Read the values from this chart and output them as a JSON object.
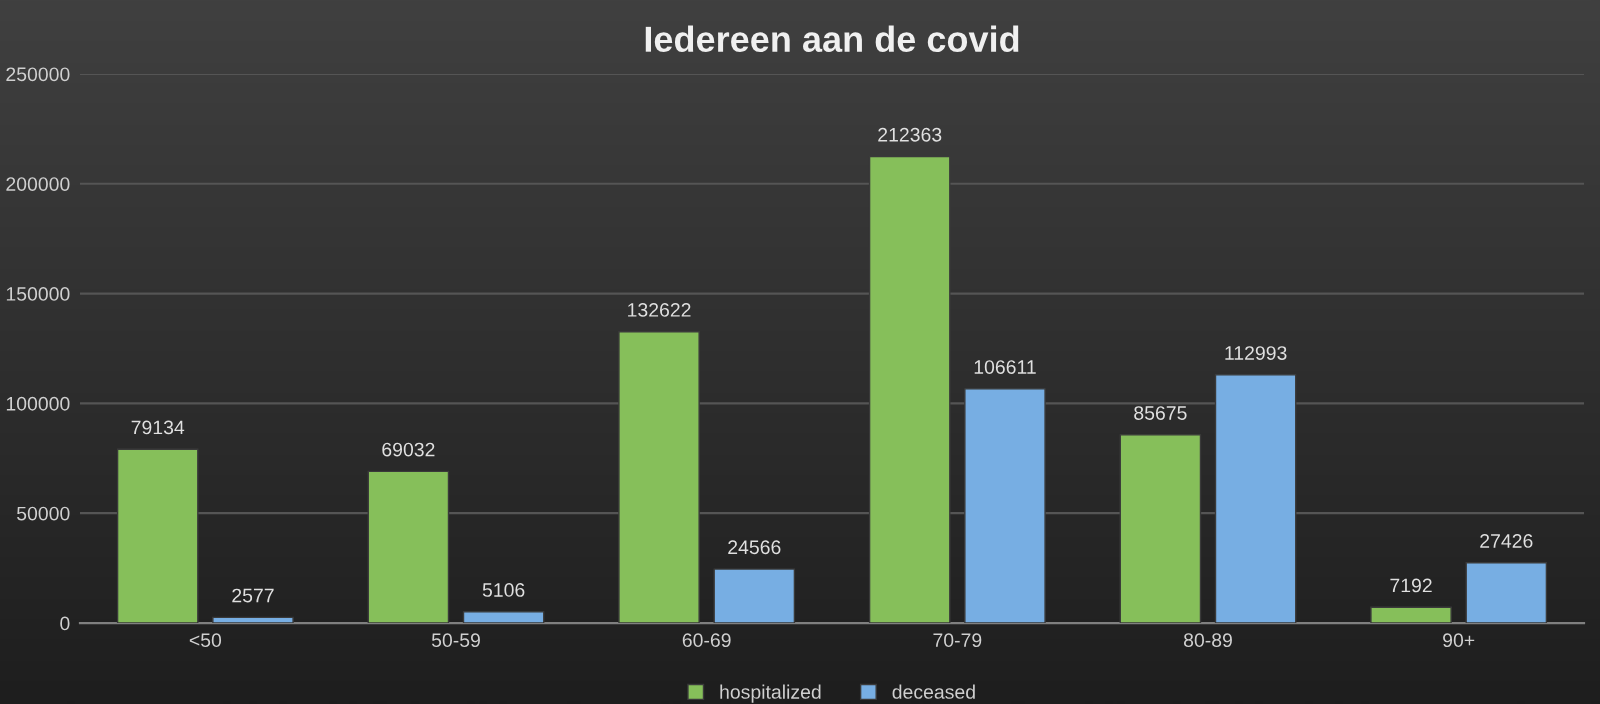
{
  "chart_data": {
    "type": "bar",
    "title": "Iedereen aan de covid",
    "categories": [
      "<50",
      "50-59",
      "60-69",
      "70-79",
      "80-89",
      "90+"
    ],
    "series": [
      {
        "name": "hospitalized",
        "color": "#86bf5a",
        "values": [
          79134,
          69032,
          132622,
          212363,
          85675,
          7192
        ]
      },
      {
        "name": "deceased",
        "color": "#77aee3",
        "values": [
          2577,
          5106,
          24566,
          106611,
          112993,
          27426
        ]
      }
    ],
    "ylim": [
      0,
      250000
    ],
    "yticks": [
      0,
      50000,
      100000,
      150000,
      200000,
      250000
    ],
    "grid": "y",
    "legend": "bottom",
    "data_labels": true
  }
}
